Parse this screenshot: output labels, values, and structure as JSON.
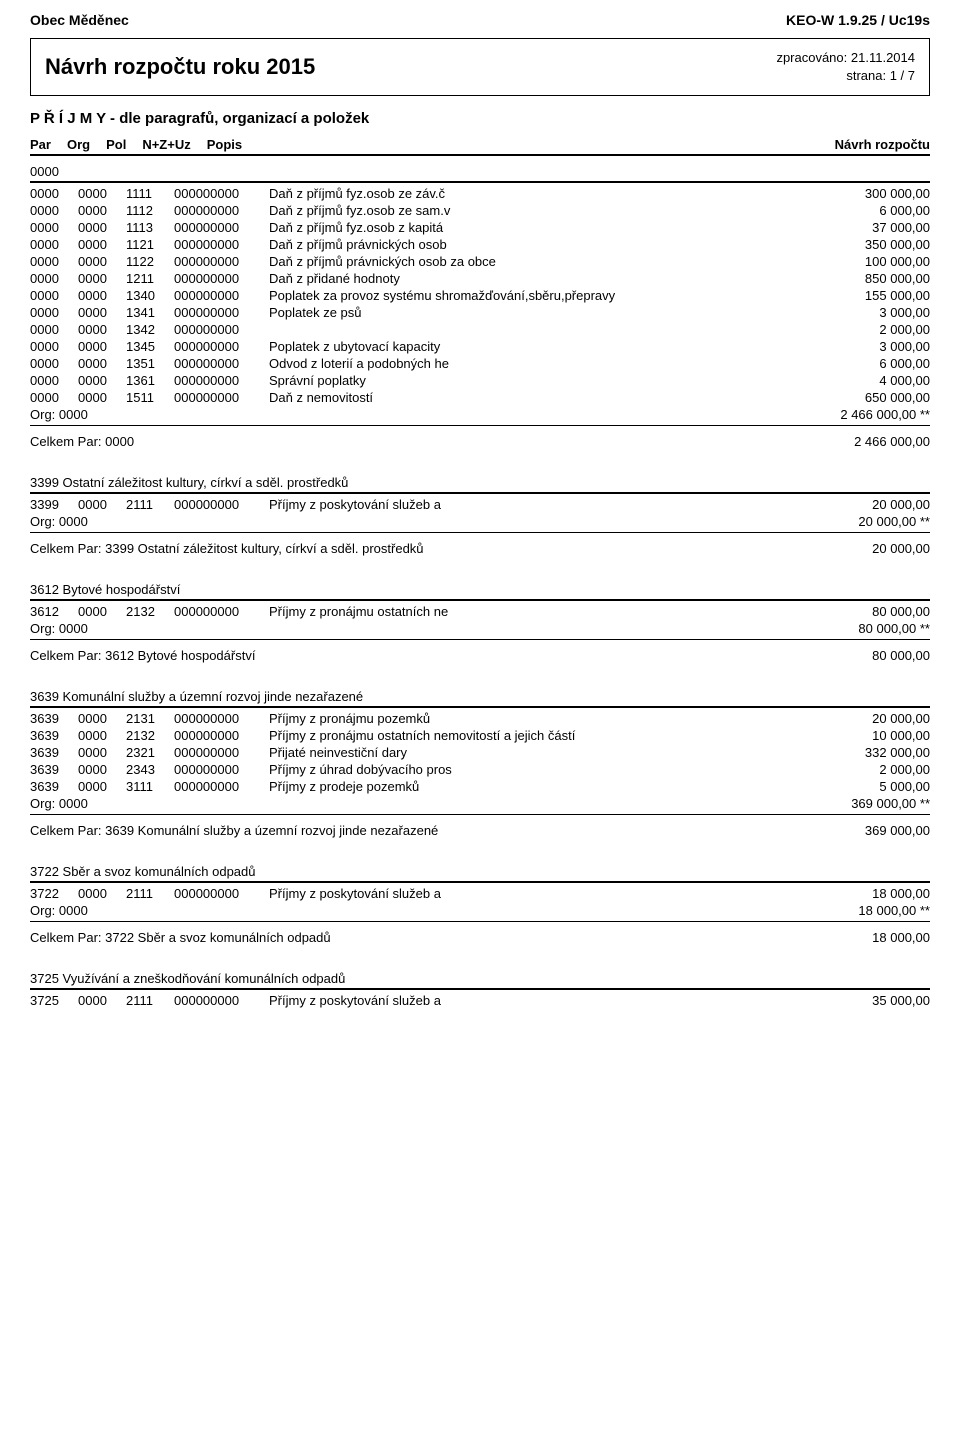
{
  "header": {
    "org_name": "Obec Měděnec",
    "system": "KEO-W 1.9.25 / Uc19s",
    "doc_title": "Návrh rozpočtu roku 2015",
    "processed_label": "zpracováno:",
    "processed_date": "21.11.2014",
    "page_label": "strana:",
    "page": "1 / 7",
    "section": "P Ř Í J M Y - dle paragrafů, organizací a položek"
  },
  "columns": {
    "par": "Par",
    "org": "Org",
    "pol": "Pol",
    "nz": "N+Z+Uz",
    "popis": "Popis",
    "navrh": "Návrh rozpočtu"
  },
  "top_par": "0000",
  "org_label": "Org:",
  "org_code": "0000",
  "celkem_label": "Celkem Par:",
  "star": "**",
  "groups": [
    {
      "par": "0000",
      "title": "",
      "rows": [
        {
          "par": "0000",
          "org": "0000",
          "pol": "1111",
          "nz": "000000000",
          "popis": "Daň z příjmů fyz.osob ze záv.č",
          "amt": "300 000,00"
        },
        {
          "par": "0000",
          "org": "0000",
          "pol": "1112",
          "nz": "000000000",
          "popis": "Daň z příjmů fyz.osob ze sam.v",
          "amt": "6 000,00"
        },
        {
          "par": "0000",
          "org": "0000",
          "pol": "1113",
          "nz": "000000000",
          "popis": "Daň z příjmů fyz.osob z kapitá",
          "amt": "37 000,00"
        },
        {
          "par": "0000",
          "org": "0000",
          "pol": "1121",
          "nz": "000000000",
          "popis": "Daň z příjmů právnických osob",
          "amt": "350 000,00"
        },
        {
          "par": "0000",
          "org": "0000",
          "pol": "1122",
          "nz": "000000000",
          "popis": "Daň z příjmů právnických osob za obce",
          "amt": "100 000,00"
        },
        {
          "par": "0000",
          "org": "0000",
          "pol": "1211",
          "nz": "000000000",
          "popis": "Daň z přidané hodnoty",
          "amt": "850 000,00"
        },
        {
          "par": "0000",
          "org": "0000",
          "pol": "1340",
          "nz": "000000000",
          "popis": "Poplatek za provoz systému shromažďování,sběru,přepravy",
          "amt": "155 000,00"
        },
        {
          "par": "0000",
          "org": "0000",
          "pol": "1341",
          "nz": "000000000",
          "popis": "Poplatek ze psů",
          "amt": "3 000,00"
        },
        {
          "par": "0000",
          "org": "0000",
          "pol": "1342",
          "nz": "000000000",
          "popis": "",
          "amt": "2 000,00"
        },
        {
          "par": "0000",
          "org": "0000",
          "pol": "1345",
          "nz": "000000000",
          "popis": "Poplatek z ubytovací kapacity",
          "amt": "3 000,00"
        },
        {
          "par": "0000",
          "org": "0000",
          "pol": "1351",
          "nz": "000000000",
          "popis": "Odvod z loterií a podobných he",
          "amt": "6 000,00"
        },
        {
          "par": "0000",
          "org": "0000",
          "pol": "1361",
          "nz": "000000000",
          "popis": "Správní poplatky",
          "amt": "4 000,00"
        },
        {
          "par": "0000",
          "org": "0000",
          "pol": "1511",
          "nz": "000000000",
          "popis": "Daň z nemovitostí",
          "amt": "650 000,00"
        }
      ],
      "org_total": "2 466 000,00",
      "total_par": "0000",
      "total_title": "",
      "par_total": "2 466 000,00"
    },
    {
      "par": "3399",
      "title": "Ostatní záležitost kultury, církví a sděl. prostředků",
      "rows": [
        {
          "par": "3399",
          "org": "0000",
          "pol": "2111",
          "nz": "000000000",
          "popis": "Příjmy z poskytování služeb a",
          "amt": "20 000,00"
        }
      ],
      "org_total": "20 000,00",
      "total_par": "3399",
      "total_title": "Ostatní záležitost kultury, církví a sděl. prostředků",
      "par_total": "20 000,00"
    },
    {
      "par": "3612",
      "title": "Bytové hospodářství",
      "rows": [
        {
          "par": "3612",
          "org": "0000",
          "pol": "2132",
          "nz": "000000000",
          "popis": "Příjmy z pronájmu ostatních ne",
          "amt": "80 000,00"
        }
      ],
      "org_total": "80 000,00",
      "total_par": "3612",
      "total_title": "Bytové hospodářství",
      "par_total": "80 000,00"
    },
    {
      "par": "3639",
      "title": "Komunální služby a územní rozvoj jinde nezařazené",
      "rows": [
        {
          "par": "3639",
          "org": "0000",
          "pol": "2131",
          "nz": "000000000",
          "popis": "Příjmy z pronájmu pozemků",
          "amt": "20 000,00"
        },
        {
          "par": "3639",
          "org": "0000",
          "pol": "2132",
          "nz": "000000000",
          "popis": "Příjmy z pronájmu ostatních nemovitostí a jejich částí",
          "amt": "10 000,00"
        },
        {
          "par": "3639",
          "org": "0000",
          "pol": "2321",
          "nz": "000000000",
          "popis": "Přijaté neinvestiční dary",
          "amt": "332 000,00"
        },
        {
          "par": "3639",
          "org": "0000",
          "pol": "2343",
          "nz": "000000000",
          "popis": "Příjmy z úhrad dobývacího pros",
          "amt": "2 000,00"
        },
        {
          "par": "3639",
          "org": "0000",
          "pol": "3111",
          "nz": "000000000",
          "popis": "Příjmy z prodeje pozemků",
          "amt": "5 000,00"
        }
      ],
      "org_total": "369 000,00",
      "total_par": "3639",
      "total_title": "Komunální služby a územní rozvoj jinde nezařazené",
      "par_total": "369 000,00"
    },
    {
      "par": "3722",
      "title": "Sběr a svoz komunálních odpadů",
      "rows": [
        {
          "par": "3722",
          "org": "0000",
          "pol": "2111",
          "nz": "000000000",
          "popis": "Příjmy z poskytování služeb a",
          "amt": "18 000,00"
        }
      ],
      "org_total": "18 000,00",
      "total_par": "3722",
      "total_title": "Sběr a svoz komunálních odpadů",
      "par_total": "18 000,00"
    },
    {
      "par": "3725",
      "title": "Využívání a zneškodňování komunálních odpadů",
      "rows": [
        {
          "par": "3725",
          "org": "0000",
          "pol": "2111",
          "nz": "000000000",
          "popis": "Příjmy z poskytování služeb a",
          "amt": "35 000,00"
        }
      ],
      "org_total": null,
      "total_par": null,
      "total_title": null,
      "par_total": null
    }
  ]
}
